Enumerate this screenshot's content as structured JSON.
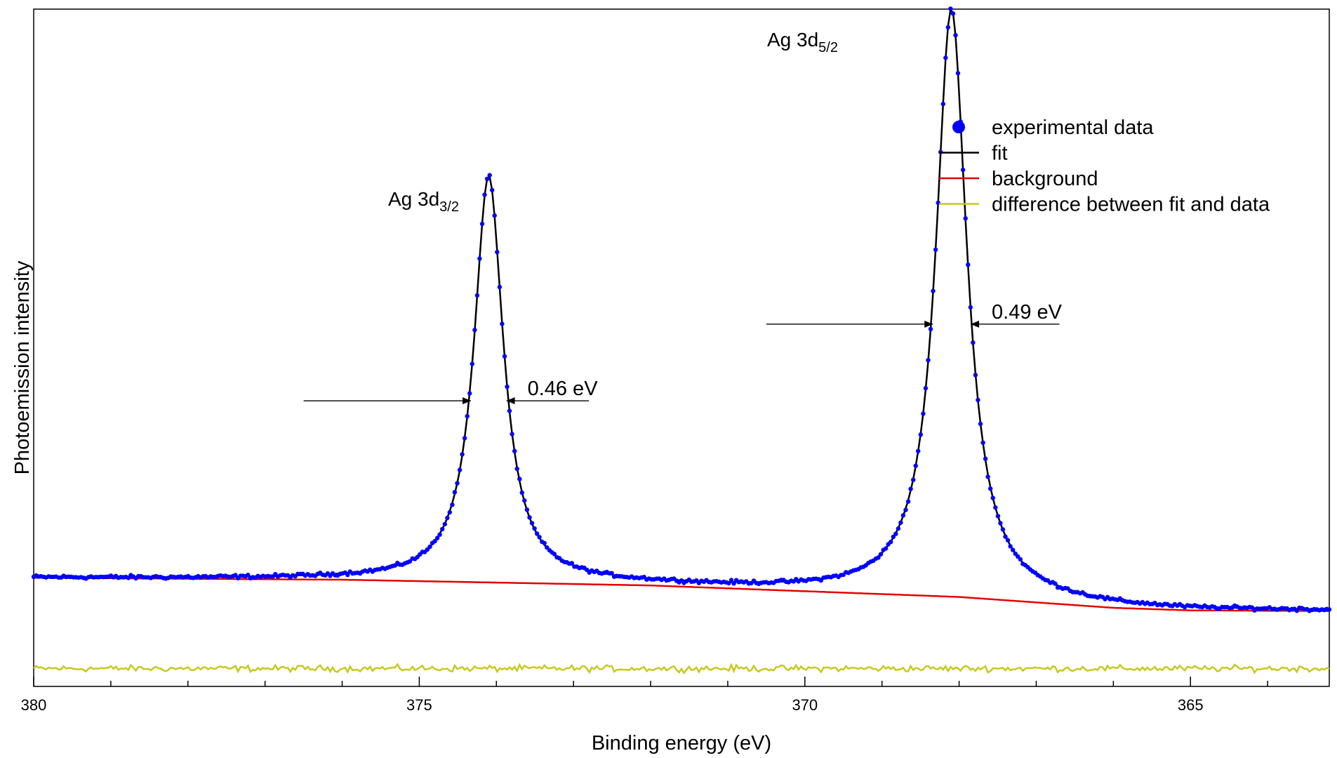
{
  "chart_data": {
    "type": "line",
    "xlabel": "Binding energy (eV)",
    "ylabel": "Photoemission intensity",
    "x_reversed": true,
    "xlim": [
      380,
      363.2
    ],
    "ylim": [
      -0.06,
      1.0
    ],
    "x_ticks": [
      380,
      375,
      370,
      365
    ],
    "x_minor_step": 1,
    "grid": false,
    "legend_position": "top-right",
    "colors": {
      "experimental": "#0000ff",
      "fit": "#000000",
      "background": "#e60000",
      "difference": "#c8c81e"
    },
    "legend": [
      {
        "key": "experimental",
        "label": "experimental data",
        "style": "dot"
      },
      {
        "key": "fit",
        "label": "fit",
        "style": "line"
      },
      {
        "key": "background",
        "label": "background",
        "style": "line"
      },
      {
        "key": "difference",
        "label": "difference between fit and data",
        "style": "line"
      }
    ],
    "peaks": [
      {
        "name": "Ag 3d",
        "sub": "3/2",
        "position_eV": 374.1,
        "height": 0.738,
        "fwhm_eV": 0.46,
        "fwhm_label": "0.46 eV"
      },
      {
        "name": "Ag 3d",
        "sub": "5/2",
        "position_eV": 368.1,
        "height": 1.0,
        "fwhm_eV": 0.49,
        "fwhm_label": "0.49 eV"
      }
    ],
    "fwhm_markers": [
      {
        "label": "0.46 eV",
        "y": 0.387,
        "left_eV": 374.33,
        "right_eV": 373.87,
        "line_from_eV": 376.5,
        "line_to_eV": 372.8
      },
      {
        "label": "0.49 eV",
        "y": 0.507,
        "left_eV": 368.34,
        "right_eV": 367.85,
        "line_from_eV": 370.5,
        "line_to_eV": 366.7
      }
    ],
    "background_points": [
      {
        "x": 380,
        "y": 0.11
      },
      {
        "x": 376,
        "y": 0.107
      },
      {
        "x": 372,
        "y": 0.098
      },
      {
        "x": 368,
        "y": 0.08
      },
      {
        "x": 366,
        "y": 0.063
      },
      {
        "x": 365,
        "y": 0.059
      },
      {
        "x": 363.2,
        "y": 0.058
      }
    ],
    "difference_offset": -0.032
  }
}
